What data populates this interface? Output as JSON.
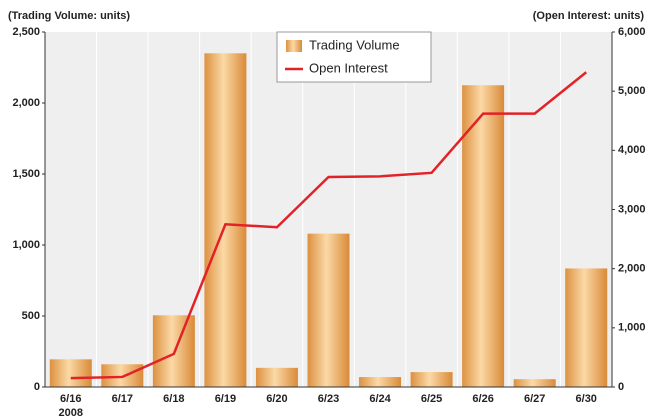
{
  "chart_data": {
    "type": "bar",
    "y_axis_label": "(Trading Volume: units)",
    "y2_axis_label": "(Open Interest: units)",
    "categories": [
      "6/16",
      "6/17",
      "6/18",
      "6/19",
      "6/20",
      "6/23",
      "6/24",
      "6/25",
      "6/26",
      "6/27",
      "6/30"
    ],
    "year_label": "2008",
    "series": [
      {
        "name": "Trading Volume",
        "color": "#e39a4c",
        "type": "bar",
        "values": [
          195,
          160,
          505,
          2350,
          135,
          1080,
          70,
          105,
          2125,
          55,
          835
        ]
      },
      {
        "name": "Open Interest",
        "color": "#e32228",
        "type": "line",
        "axis": "y2",
        "values": [
          150,
          170,
          560,
          2750,
          2700,
          3550,
          3560,
          3620,
          4620,
          4620,
          5320
        ]
      }
    ],
    "ylim": [
      0,
      2500
    ],
    "yticks": [
      0,
      500,
      {
        "value": 1000,
        "label": "1,000"
      },
      {
        "value": 1500,
        "label": "1,500"
      },
      {
        "value": 2000,
        "label": "2,000"
      },
      {
        "value": 2500,
        "label": "2,500"
      }
    ],
    "y2lim": [
      0,
      6000
    ],
    "y2ticks": [
      0,
      {
        "value": 1000,
        "label": "1,000"
      },
      {
        "value": 2000,
        "label": "2,000"
      },
      {
        "value": 3000,
        "label": "3,000"
      },
      {
        "value": 4000,
        "label": "4,000"
      },
      {
        "value": 5000,
        "label": "5,000"
      },
      {
        "value": 6000,
        "label": "6,000"
      }
    ]
  }
}
